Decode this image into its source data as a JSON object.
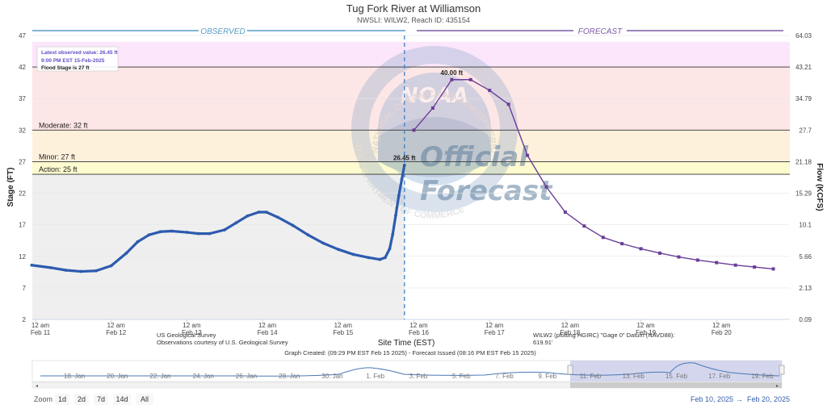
{
  "chart_data": {
    "type": "line",
    "title": "Tug Fork River at Williamson",
    "subtitle": "NWSLI: WILW2, Reach ID: 435154",
    "observed_label": "OBSERVED",
    "forecast_label": "FORECAST",
    "xlabel": "Site Time (EST)",
    "ylabel_left": "Stage (FT)",
    "ylabel_right": "Flow (KCFS)",
    "ylim": [
      2,
      47
    ],
    "y_ticks": [
      "2",
      "7",
      "12",
      "17",
      "22",
      "27",
      "32",
      "37",
      "42",
      "47"
    ],
    "y_right_ticks": [
      "0.09",
      "2.13",
      "5.66",
      "10.1",
      "15.29",
      "21.18",
      "27.7",
      "34.79",
      "43.21",
      "64.03"
    ],
    "x_ticks": [
      {
        "day": 0,
        "line1": "12 am",
        "line2": "Feb 11"
      },
      {
        "day": 1,
        "line1": "12 am",
        "line2": "Feb 12"
      },
      {
        "day": 2,
        "line1": "12 am",
        "line2": "Feb 13"
      },
      {
        "day": 3,
        "line1": "12 am",
        "line2": "Feb 14"
      },
      {
        "day": 4,
        "line1": "12 am",
        "line2": "Feb 15"
      },
      {
        "day": 5,
        "line1": "12 am",
        "line2": "Feb 16"
      },
      {
        "day": 6,
        "line1": "12 am",
        "line2": "Feb 17"
      },
      {
        "day": 7,
        "line1": "12 am",
        "line2": "Feb 18"
      },
      {
        "day": 8,
        "line1": "12 am",
        "line2": "Feb 19"
      },
      {
        "day": 9,
        "line1": "12 am",
        "line2": "Feb 20"
      }
    ],
    "forecast_start_day": 4.875,
    "thresholds": [
      {
        "label": "Action: 25 ft",
        "value": 25
      },
      {
        "label": "Minor: 27 ft",
        "value": 27
      },
      {
        "label": "Moderate: 32 ft",
        "value": 32
      },
      {
        "label": "",
        "value": 42
      }
    ],
    "bands": [
      {
        "from": 2,
        "to": 25,
        "color": "#efefef",
        "region": "observed"
      },
      {
        "from": 25,
        "to": 27,
        "color": "#fdfbcf"
      },
      {
        "from": 27,
        "to": 32,
        "color": "#fdf1dc"
      },
      {
        "from": 32,
        "to": 42,
        "color": "#fde6e6"
      },
      {
        "from": 42,
        "to": 46,
        "color": "#fbe6fb"
      }
    ],
    "series": [
      {
        "name": "",
        "color": "#2d5bae",
        "points": [
          [
            -0.05,
            10.6
          ],
          [
            0.2,
            10.2
          ],
          [
            0.4,
            9.8
          ],
          [
            0.6,
            9.6
          ],
          [
            0.8,
            9.7
          ],
          [
            1.0,
            10.5
          ],
          [
            1.2,
            12.5
          ],
          [
            1.35,
            14.3
          ],
          [
            1.5,
            15.4
          ],
          [
            1.65,
            15.9
          ],
          [
            1.8,
            16.0
          ],
          [
            2.0,
            15.8
          ],
          [
            2.15,
            15.6
          ],
          [
            2.3,
            15.6
          ],
          [
            2.5,
            16.2
          ],
          [
            2.65,
            17.3
          ],
          [
            2.8,
            18.4
          ],
          [
            2.95,
            19.0
          ],
          [
            3.05,
            19.0
          ],
          [
            3.2,
            18.2
          ],
          [
            3.4,
            16.9
          ],
          [
            3.6,
            15.4
          ],
          [
            3.8,
            14.1
          ],
          [
            4.0,
            13.1
          ],
          [
            4.2,
            12.3
          ],
          [
            4.4,
            11.8
          ],
          [
            4.55,
            11.5
          ],
          [
            4.62,
            11.8
          ],
          [
            4.68,
            13.2
          ],
          [
            4.72,
            15.5
          ],
          [
            4.76,
            18.5
          ],
          [
            4.8,
            21.6
          ],
          [
            4.84,
            24.2
          ],
          [
            4.875,
            26.45
          ]
        ]
      },
      {
        "name": "",
        "color": "#6a3d98",
        "points": [
          [
            5.0,
            32.0
          ],
          [
            5.25,
            35.5
          ],
          [
            5.5,
            40.0
          ],
          [
            5.75,
            40.0
          ],
          [
            6.0,
            38.3
          ],
          [
            6.25,
            36.1
          ],
          [
            6.5,
            28.0
          ],
          [
            6.75,
            23.0
          ],
          [
            7.0,
            19.0
          ],
          [
            7.25,
            16.8
          ],
          [
            7.5,
            15.0
          ],
          [
            7.75,
            14.0
          ],
          [
            8.0,
            13.2
          ],
          [
            8.25,
            12.5
          ],
          [
            8.5,
            11.9
          ],
          [
            8.75,
            11.4
          ],
          [
            9.0,
            11.0
          ],
          [
            9.25,
            10.6
          ],
          [
            9.5,
            10.3
          ],
          [
            9.75,
            10.0
          ]
        ]
      }
    ],
    "data_labels": [
      {
        "text": "26.45 ft",
        "x": 4.875,
        "y": 26.45
      },
      {
        "text": "40.00 ft",
        "x": 5.5,
        "y": 40.0
      }
    ],
    "tooltip": {
      "line1": "Latest observed value: 26.45 ft",
      "line2": "9:00 PM EST 15-Feb-2025",
      "line3": "Flood Stage is 27 ft"
    },
    "credits": {
      "usgs1": "US Geological Survey",
      "usgs2": "Observations courtesy of U.S. Geological Survey",
      "datum1": "WILW2 (plotting HGIRC) \"Gage 0\" Datum (NAVD88):",
      "datum2": "619.91'",
      "created": "Graph Created: (09:29 PM EST Feb 15 2025) - Forecast Issued (08:16 PM EST Feb 15 2025)"
    },
    "navigator": {
      "labels": [
        "18. Jan",
        "20. Jan",
        "22. Jan",
        "24. Jan",
        "26. Jan",
        "28. Jan",
        "30. Jan",
        "1. Feb",
        "3. Feb",
        "5. Feb",
        "7. Feb",
        "9. Feb",
        "11. Feb",
        "13. Feb",
        "15. Feb",
        "17. Feb",
        "19. Feb"
      ]
    },
    "range_selector": {
      "zoom_label": "Zoom",
      "buttons": [
        "1d",
        "2d",
        "7d",
        "14d",
        "All"
      ],
      "from_date": "Feb 10, 2025",
      "arrow": "→",
      "to_date": "Feb 20, 2025"
    },
    "watermark": {
      "noaa": "NOAA",
      "agency": "NATIONAL OCEANIC AND ATMOSPHERIC ADMINISTRATION",
      "dept": "U.S. DEPARTMENT OF COMMERCE",
      "official": "Official",
      "forecast": "Forecast"
    }
  }
}
